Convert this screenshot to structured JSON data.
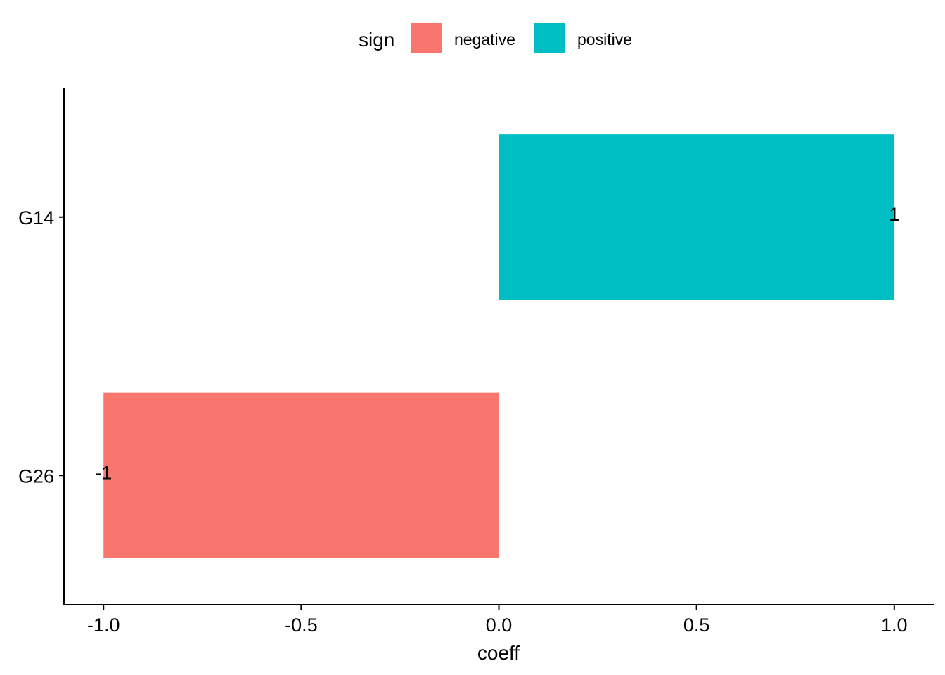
{
  "chart_data": {
    "type": "bar",
    "orientation": "horizontal",
    "categories": [
      "G14",
      "G26"
    ],
    "values": [
      1,
      -1
    ],
    "fill_by": [
      "positive",
      "negative"
    ],
    "data_labels": [
      "1",
      "-1"
    ],
    "xlabel": "coeff",
    "ylabel": "",
    "xlim": [
      -1.1,
      1.1
    ],
    "xticks": [
      -1.0,
      -0.5,
      0.0,
      0.5,
      1.0
    ],
    "xtick_labels": [
      "-1.0",
      "-0.5",
      "0.0",
      "0.5",
      "1.0"
    ],
    "grid": false,
    "legend": {
      "title": "sign",
      "position": "top",
      "entries": [
        {
          "label": "negative",
          "color": "#F8766D"
        },
        {
          "label": "positive",
          "color": "#00BFC4"
        }
      ]
    }
  }
}
